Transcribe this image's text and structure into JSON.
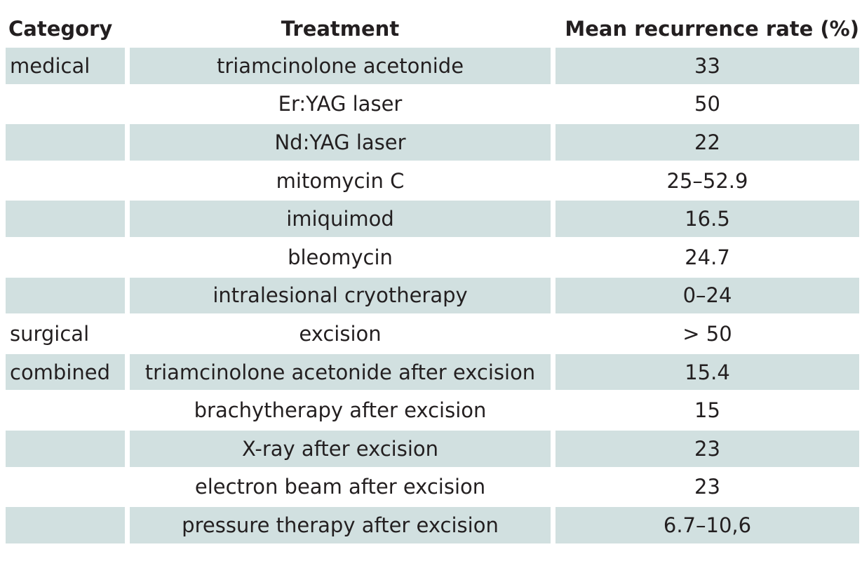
{
  "table": {
    "headers": {
      "category": "Category",
      "treatment": "Treatment",
      "rate": "Mean recurrence rate (%)"
    },
    "rows": [
      {
        "category": "medical",
        "treatment": "triamcinolone acetonide",
        "rate": "33",
        "shaded": true
      },
      {
        "category": "",
        "treatment": "Er:YAG laser",
        "rate": "50",
        "shaded": false
      },
      {
        "category": "",
        "treatment": "Nd:YAG laser",
        "rate": "22",
        "shaded": true
      },
      {
        "category": "",
        "treatment": "mitomycin C",
        "rate": "25–52.9",
        "shaded": false
      },
      {
        "category": "",
        "treatment": "imiquimod",
        "rate": "16.5",
        "shaded": true
      },
      {
        "category": "",
        "treatment": "bleomycin",
        "rate": "24.7",
        "shaded": false
      },
      {
        "category": "",
        "treatment": "intralesional cryotherapy",
        "rate": "0–24",
        "shaded": true
      },
      {
        "category": "surgical",
        "treatment": "excision",
        "rate": "> 50",
        "shaded": false
      },
      {
        "category": "combined",
        "treatment": "triamcinolone acetonide after excision",
        "rate": "15.4",
        "shaded": true
      },
      {
        "category": "",
        "treatment": "brachytherapy after excision",
        "rate": "15",
        "shaded": false
      },
      {
        "category": "",
        "treatment": "X-ray after excision",
        "rate": "23",
        "shaded": true
      },
      {
        "category": "",
        "treatment": "electron beam after excision",
        "rate": "23",
        "shaded": false
      },
      {
        "category": "",
        "treatment": "pressure therapy after excision",
        "rate": "6.7–10,6",
        "shaded": true
      }
    ]
  },
  "colors": {
    "row_shade": "#d1e0e0",
    "text": "#231f20"
  }
}
